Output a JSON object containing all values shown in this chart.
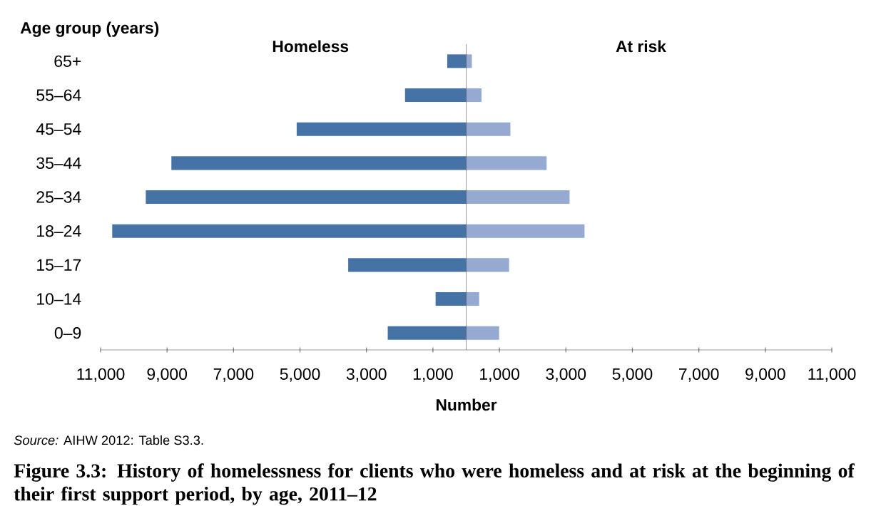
{
  "chart_data": [
    {
      "type": "bar",
      "orientation": "horizontal",
      "title": "Figure 3.3: History of homelessness for clients who were homeless and at risk at the beginning of their first support period, by age, 2011–12",
      "xlabel": "Number",
      "ylabel": "Age group (years)",
      "annotations": [
        "*Source:* AIHW 2012: Table S3.3."
      ],
      "categories": [
        "65+",
        "55–64",
        "45–54",
        "35–44",
        "25–34",
        "18–24",
        "15–17",
        "10–14",
        "0–9"
      ],
      "series": [
        {
          "name": "Homeless",
          "color": "#4673a6",
          "values": [
            570,
            1840,
            5100,
            8870,
            9640,
            10650,
            3550,
            920,
            2360
          ]
        }
      ],
      "xlim": [
        11000,
        0
      ],
      "xticks": [
        {
          "value": 11000,
          "label": "11,000"
        },
        {
          "value": 9000,
          "label": "9,000"
        },
        {
          "value": 7000,
          "label": "7,000"
        },
        {
          "value": 5000,
          "label": "5,000"
        },
        {
          "value": 3000,
          "label": "3,000"
        },
        {
          "value": 1000,
          "label": "1,000"
        }
      ]
    },
    {
      "type": "bar",
      "orientation": "horizontal",
      "tick_labels": "x",
      "categories": [
        null,
        null,
        null,
        null,
        null,
        null,
        null,
        null,
        null
      ],
      "series": [
        {
          "name": "At risk",
          "color": "#95a9d1",
          "values": [
            170,
            460,
            1330,
            2420,
            3110,
            3560,
            1290,
            390,
            990
          ]
        }
      ],
      "xlim": [
        0,
        11000
      ],
      "xticks": [
        {
          "value": 1000,
          "label": "1,000"
        },
        {
          "value": 3000,
          "label": "3,000"
        },
        {
          "value": 5000,
          "label": "5,000"
        },
        {
          "value": 7000,
          "label": "7,000"
        },
        {
          "value": 9000,
          "label": "9,000"
        },
        {
          "value": 11000,
          "label": "11,000"
        }
      ]
    }
  ]
}
